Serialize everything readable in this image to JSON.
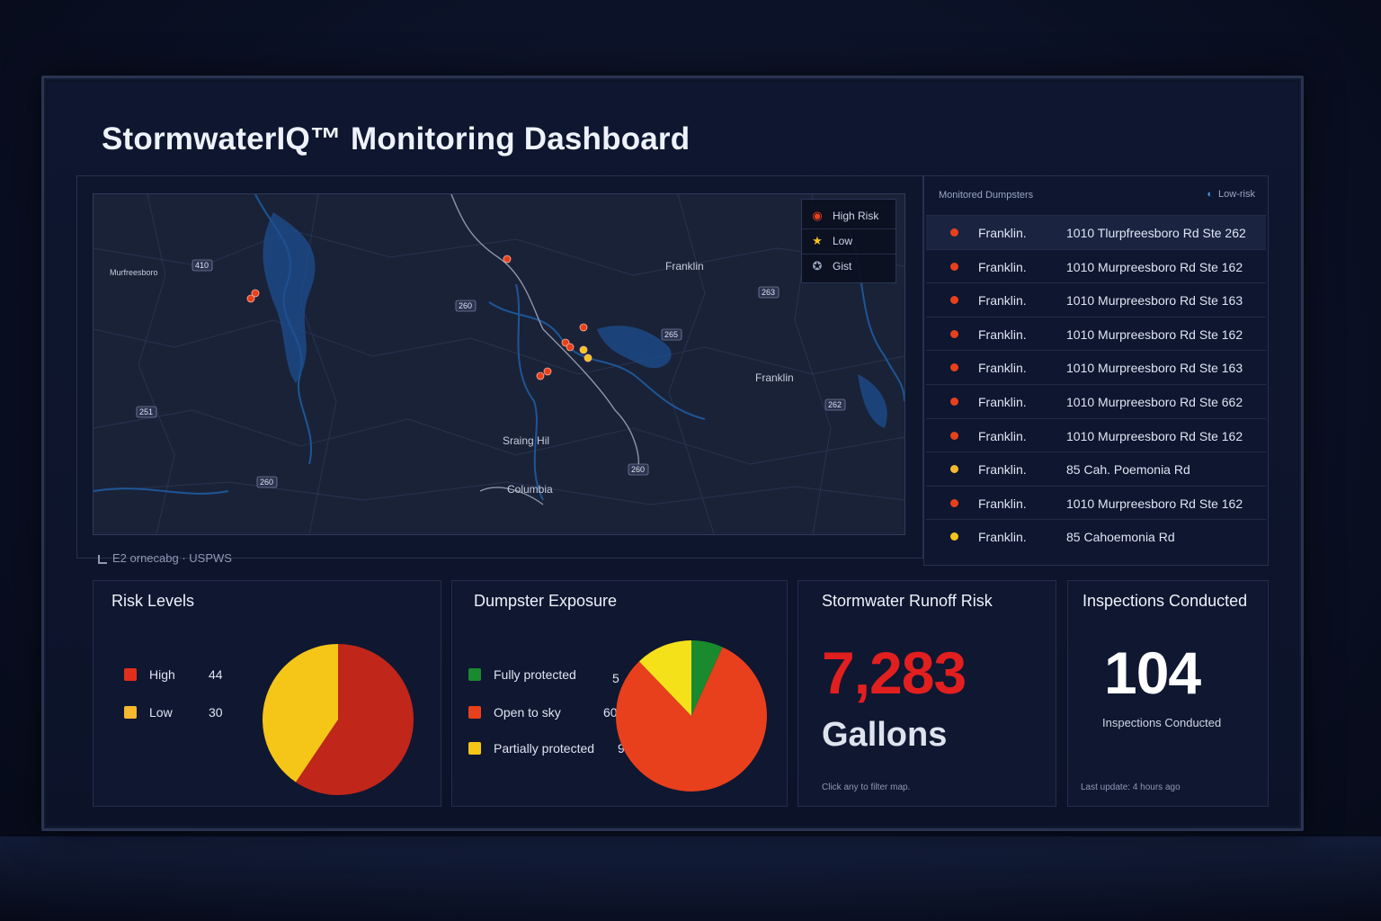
{
  "title": "StormwaterIQ™ Monitoring Dashboard",
  "map": {
    "labels": [
      "Franklin",
      "Franklin",
      "Sraing Hil",
      "Columbia",
      "Murfreesboro"
    ],
    "shields": [
      "410",
      "260",
      "263",
      "251",
      "260",
      "260",
      "262",
      "265"
    ],
    "legend": [
      {
        "label": "High Risk",
        "icon": "high-risk-icon",
        "color": "#e8401c"
      },
      {
        "label": "Low",
        "icon": "star-icon",
        "color": "#f5c518"
      },
      {
        "label": "Gist",
        "icon": "pin-icon",
        "color": "#9aa5bf"
      }
    ],
    "caption": "E2  ornecabg · USPWS",
    "markers": [
      {
        "risk": "high"
      },
      {
        "risk": "high"
      },
      {
        "risk": "high"
      },
      {
        "risk": "high"
      },
      {
        "risk": "high"
      },
      {
        "risk": "high"
      },
      {
        "risk": "high"
      },
      {
        "risk": "high"
      },
      {
        "risk": "low"
      },
      {
        "risk": "low"
      }
    ]
  },
  "list": {
    "header": "Monitored Dumpsters",
    "filter": "Low-risk",
    "rows": [
      {
        "city": "Franklin.",
        "address": "1010 Tlurpfreesboro Rd Ste 262",
        "risk": "high",
        "color": "#e8401c"
      },
      {
        "city": "Franklin.",
        "address": "1010 Murpreesboro Rd Ste 162",
        "risk": "high",
        "color": "#e8401c"
      },
      {
        "city": "Franklin.",
        "address": "1010 Murpreesboro Rd Ste 163",
        "risk": "high",
        "color": "#e8401c"
      },
      {
        "city": "Franklin.",
        "address": "1010 Murpreesboro Rd Ste 162",
        "risk": "high",
        "color": "#e8401c"
      },
      {
        "city": "Franklin.",
        "address": "1010 Murpreesboro Rd Ste 163",
        "risk": "high",
        "color": "#e8401c"
      },
      {
        "city": "Franklin.",
        "address": "1010 Murpreesboro Rd Ste 662",
        "risk": "high",
        "color": "#e8401c"
      },
      {
        "city": "Franklin.",
        "address": "1010 Murpreesboro Rd Ste 162",
        "risk": "high",
        "color": "#e8401c"
      },
      {
        "city": "Franklin.",
        "address": "85 Cah. Poemonia Rd",
        "risk": "low",
        "color": "#f5b82e"
      },
      {
        "city": "Franklin.",
        "address": "1010 Murpreesboro Rd Ste 162",
        "risk": "high",
        "color": "#e8401c"
      },
      {
        "city": "Franklin.",
        "address": "85 Cahoemonia Rd",
        "risk": "low",
        "color": "#f5c518"
      }
    ]
  },
  "risk_levels": {
    "title": "Risk Levels",
    "items": [
      {
        "label": "High",
        "value": "44",
        "color": "#e0301c"
      },
      {
        "label": "Low",
        "value": "30",
        "color": "#f5b82e"
      }
    ]
  },
  "exposure": {
    "title": "Dumpster Exposure",
    "items": [
      {
        "label": "Fully protected",
        "value": "5",
        "color": "#1a8a2e"
      },
      {
        "label": "Open to sky",
        "value": "60",
        "color": "#e8401c"
      },
      {
        "label": "Partially protected",
        "value": "9",
        "color": "#f5c518"
      }
    ]
  },
  "runoff": {
    "title": "Stormwater Runoff Risk",
    "value": "7,283",
    "unit": "Gallons",
    "note": "Click any to filter map."
  },
  "inspections": {
    "title": "Inspections Conducted",
    "value": "104",
    "label": "Inspections Conducted",
    "note": "Last update: 4 hours ago"
  },
  "chart_data": [
    {
      "type": "pie",
      "categories": [
        "High",
        "Low"
      ],
      "values": [
        44,
        30
      ],
      "title": "Risk Levels"
    },
    {
      "type": "pie",
      "categories": [
        "Fully protected",
        "Open to sky",
        "Partially protected"
      ],
      "values": [
        5,
        60,
        9
      ],
      "title": "Dumpster Exposure"
    }
  ]
}
